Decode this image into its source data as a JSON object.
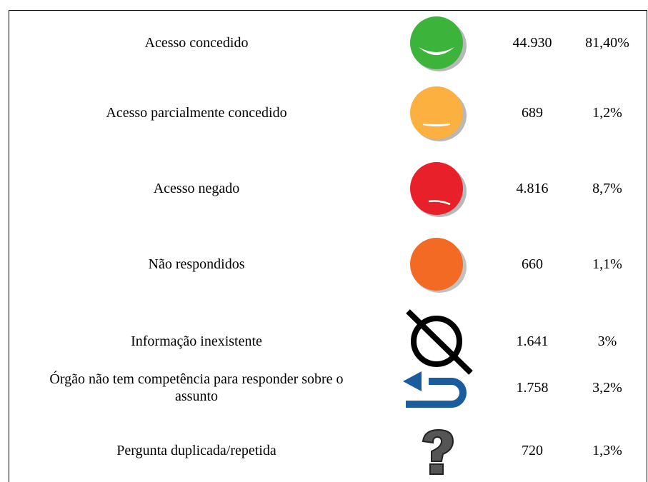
{
  "table": {
    "rows": [
      [
        "Acesso concedido",
        "44.930",
        "81,40%"
      ],
      [
        "Acesso parcialmente concedido",
        "689",
        "1,2%"
      ],
      [
        "Acesso negado",
        "4.816",
        "8,7%"
      ],
      [
        "Não respondidos",
        "660",
        "1,1%"
      ],
      [
        "Informação inexistente",
        "1.641",
        "3%"
      ],
      [
        "Órgão não tem competência para responder sobre o assunto",
        "1.758",
        "3,2%"
      ],
      [
        "Pergunta duplicada/repetida",
        "720",
        "1,3%"
      ]
    ]
  }
}
